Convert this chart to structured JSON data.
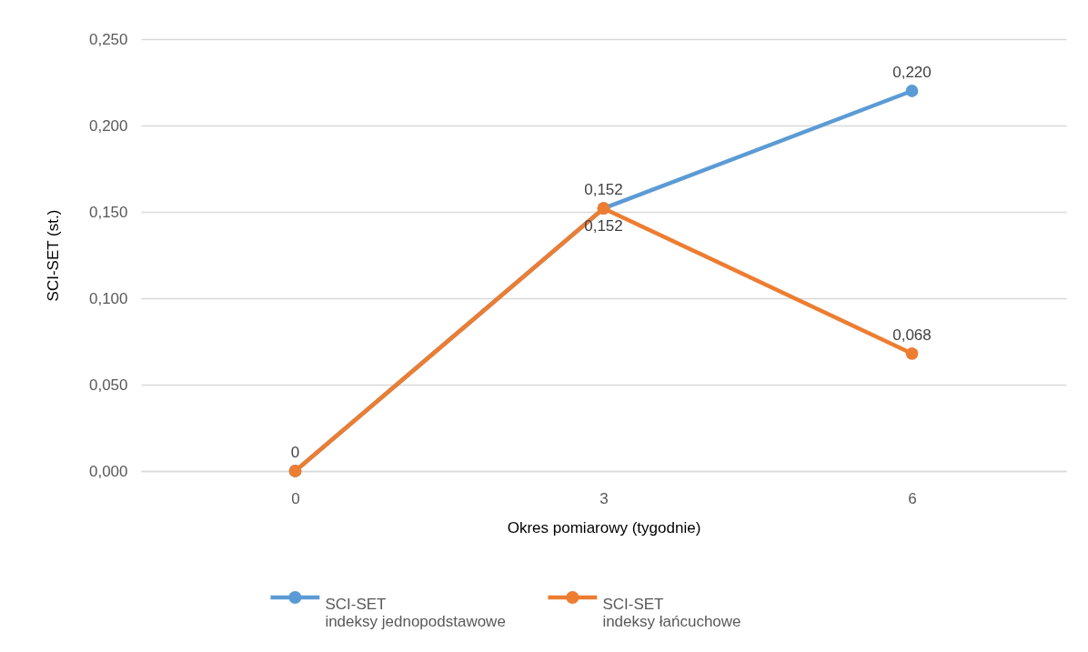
{
  "chart_data": {
    "type": "line",
    "xlabel": "Okres pomiarowy (tygodnie)",
    "ylabel": "SCI-SET (st.)",
    "categories": [
      "0",
      "3",
      "6"
    ],
    "series": [
      {
        "name": "SCI-SET\nindeksy jednopodstawowe",
        "color": "#5b9bd5",
        "values": [
          0,
          0.152,
          0.22
        ],
        "value_labels": [
          null,
          "0,152",
          "0,220"
        ]
      },
      {
        "name": "SCI-SET\nindeksy łańcuchowe",
        "color": "#ed7d31",
        "values": [
          0,
          0.152,
          0.068
        ],
        "value_labels": [
          "0",
          "0,152",
          "0,068"
        ]
      }
    ],
    "ylim": [
      0,
      0.25
    ],
    "yticks": [
      {
        "value": 0,
        "label": "0,000"
      },
      {
        "value": 0.05,
        "label": "0,050"
      },
      {
        "value": 0.1,
        "label": "0,100"
      },
      {
        "value": 0.15,
        "label": "0,150"
      },
      {
        "value": 0.2,
        "label": "0,200"
      },
      {
        "value": 0.25,
        "label": "0,250"
      }
    ],
    "grid": "y",
    "legend": "bottom",
    "marker": "circle",
    "line_style": "solid"
  }
}
